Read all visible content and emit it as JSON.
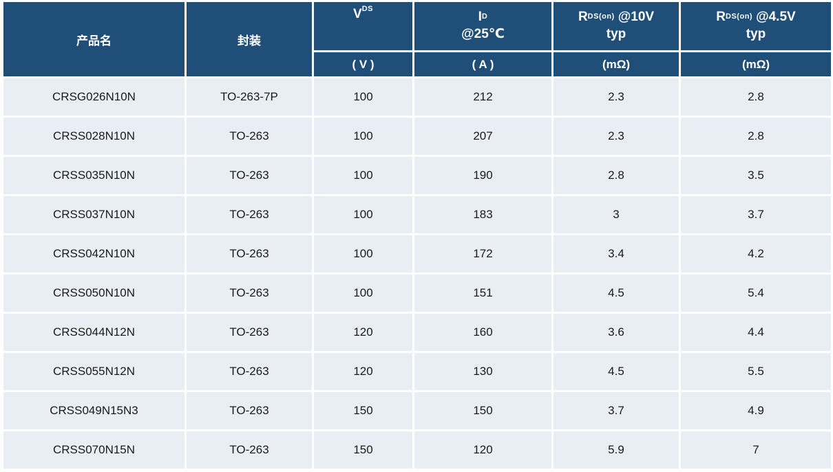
{
  "colors": {
    "header_bg": "#1F4E79",
    "header_text": "#FFFFFF",
    "row_bg": "#E9EDF4",
    "row_text": "#1A1A1A",
    "grid_gap": "#FFFFFF"
  },
  "table": {
    "header": {
      "product": "产品名",
      "package": "封装",
      "vds": {
        "sym": "V",
        "sub": "DS",
        "unit": "( V )"
      },
      "id": {
        "sym": "I",
        "sub": "D",
        "cond": "@25℃",
        "unit": "( A )"
      },
      "rds10": {
        "sym": "R",
        "sub": "DS(on)",
        "cond": "@10V",
        "typ": "typ",
        "unit": "(mΩ)"
      },
      "rds45": {
        "sym": "R",
        "sub": "DS(on)",
        "cond": "@4.5V",
        "typ": "typ",
        "unit": "(mΩ)"
      }
    },
    "rows": [
      {
        "product": "CRSG026N10N",
        "package": "TO-263-7P",
        "vds": "100",
        "id": "212",
        "rds10": "2.3",
        "rds45": "2.8"
      },
      {
        "product": "CRSS028N10N",
        "package": "TO-263",
        "vds": "100",
        "id": "207",
        "rds10": "2.3",
        "rds45": "2.8"
      },
      {
        "product": "CRSS035N10N",
        "package": "TO-263",
        "vds": "100",
        "id": "190",
        "rds10": "2.8",
        "rds45": "3.5"
      },
      {
        "product": "CRSS037N10N",
        "package": "TO-263",
        "vds": "100",
        "id": "183",
        "rds10": "3",
        "rds45": "3.7"
      },
      {
        "product": "CRSS042N10N",
        "package": "TO-263",
        "vds": "100",
        "id": "172",
        "rds10": "3.4",
        "rds45": "4.2"
      },
      {
        "product": "CRSS050N10N",
        "package": "TO-263",
        "vds": "100",
        "id": "151",
        "rds10": "4.5",
        "rds45": "5.4"
      },
      {
        "product": "CRSS044N12N",
        "package": "TO-263",
        "vds": "120",
        "id": "160",
        "rds10": "3.6",
        "rds45": "4.4"
      },
      {
        "product": "CRSS055N12N",
        "package": "TO-263",
        "vds": "120",
        "id": "130",
        "rds10": "4.5",
        "rds45": "5.5"
      },
      {
        "product": "CRSS049N15N3",
        "package": "TO-263",
        "vds": "150",
        "id": "150",
        "rds10": "3.7",
        "rds45": "4.9"
      },
      {
        "product": "CRSS070N15N",
        "package": "TO-263",
        "vds": "150",
        "id": "120",
        "rds10": "5.9",
        "rds45": "7"
      }
    ]
  }
}
